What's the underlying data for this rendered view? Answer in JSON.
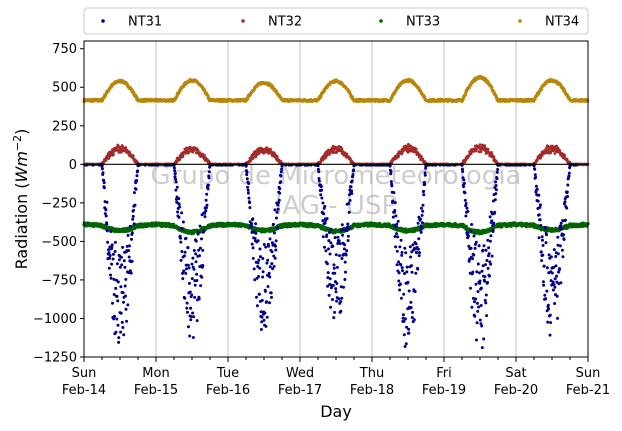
{
  "chart_data": {
    "type": "scatter",
    "xlabel": "Day",
    "ylabel": "Radiation",
    "ylabel_unit_base": "Wm",
    "ylabel_unit_exp": "−2",
    "ylim": [
      -1250,
      800
    ],
    "yticks": [
      750,
      500,
      250,
      0,
      -250,
      -500,
      -750,
      -1000,
      -1250
    ],
    "ytick_labels": [
      "750",
      "500",
      "250",
      "0",
      "−250",
      "−500",
      "−750",
      "−1000",
      "−1250"
    ],
    "xlim": [
      0,
      7
    ],
    "xticks": [
      {
        "x": 0,
        "dow": "Sun",
        "date": "Feb-14"
      },
      {
        "x": 1,
        "dow": "Mon",
        "date": "Feb-15"
      },
      {
        "x": 2,
        "dow": "Tue",
        "date": "Feb-16"
      },
      {
        "x": 3,
        "dow": "Wed",
        "date": "Feb-17"
      },
      {
        "x": 4,
        "dow": "Thu",
        "date": "Feb-18"
      },
      {
        "x": 5,
        "dow": "Fri",
        "date": "Feb-19"
      },
      {
        "x": 6,
        "dow": "Sat",
        "date": "Feb-20"
      },
      {
        "x": 7,
        "dow": "Sun",
        "date": "Feb-21"
      }
    ],
    "grid": "vertical",
    "zero_line": 0,
    "legend_position": "top",
    "watermark": [
      "Grupo de Micrometeorologia",
      "IAG - USP"
    ],
    "series": [
      {
        "name": "NT31",
        "color": "#00008b",
        "description": "night values near 0, strongly negative during daytime",
        "baseline": -5,
        "daily_min": [
          -1220,
          -1090,
          -1060,
          -1020,
          -1170,
          -1160,
          -1080
        ]
      },
      {
        "name": "NT32",
        "color": "#a52a2a",
        "description": "near 0 at night, positive peaks midday",
        "baseline": 0,
        "daily_peak": [
          110,
          105,
          100,
          105,
          110,
          115,
          110
        ]
      },
      {
        "name": "NT33",
        "color": "#006400",
        "description": "roughly constant around -400",
        "baseline": -390,
        "daily_dip": [
          -420,
          -430,
          -420,
          -425,
          -420,
          -430,
          -415
        ]
      },
      {
        "name": "NT34",
        "color": "#b8860b",
        "description": "night around 410-420, daytime peaks around 520-560",
        "baseline": 415,
        "daily_peak": [
          540,
          545,
          530,
          540,
          545,
          565,
          545
        ]
      }
    ]
  }
}
